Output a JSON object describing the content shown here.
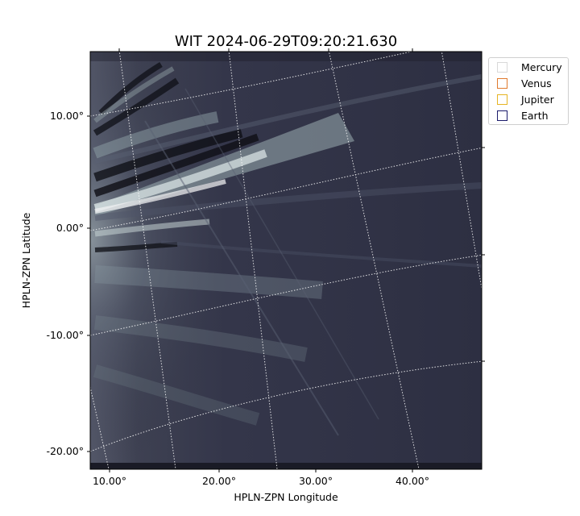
{
  "plot": {
    "title": "WIT 2024-06-29T09:20:21.630",
    "xlabel": "HPLN-ZPN Longitude",
    "ylabel": "HPLN-ZPN Latitude",
    "x_ticks": [
      "10.00°",
      "20.00°",
      "30.00°",
      "40.00°"
    ],
    "y_ticks": [
      "10.00°",
      "0.00°",
      "-10.00°",
      "-20.00°"
    ],
    "image_colormap": "bone",
    "grid": "dotted white coordinate grid"
  },
  "legend": {
    "items": [
      {
        "label": "Mercury",
        "color": "#d9d9d9"
      },
      {
        "label": "Venus",
        "color": "#e07a2e"
      },
      {
        "label": "Jupiter",
        "color": "#e6b422"
      },
      {
        "label": "Earth",
        "color": "#1b1b6b"
      }
    ]
  }
}
